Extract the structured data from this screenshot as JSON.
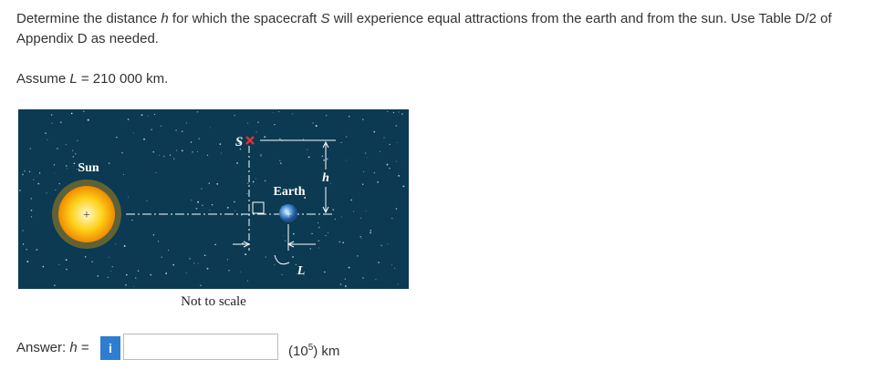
{
  "question": {
    "parts": [
      "Determine the distance ",
      "h",
      " for which the spacecraft ",
      "S",
      " will experience equal attractions from the earth and from the sun. Use Table D/2 of Appendix D as needed."
    ]
  },
  "assumption": {
    "parts": [
      "Assume ",
      "L",
      " = 210 000 km."
    ]
  },
  "figure": {
    "labels": {
      "sun": "Sun",
      "sun_center": "+",
      "earth": "Earth",
      "earth_center": "+",
      "spacecraft": "S",
      "h": "h",
      "L": "L"
    },
    "caption": "Not to scale"
  },
  "answer": {
    "label_parts": [
      "Answer: ",
      "h",
      " ="
    ],
    "info_icon": "i",
    "units_parts": [
      "(10",
      "5",
      ") km"
    ]
  }
}
